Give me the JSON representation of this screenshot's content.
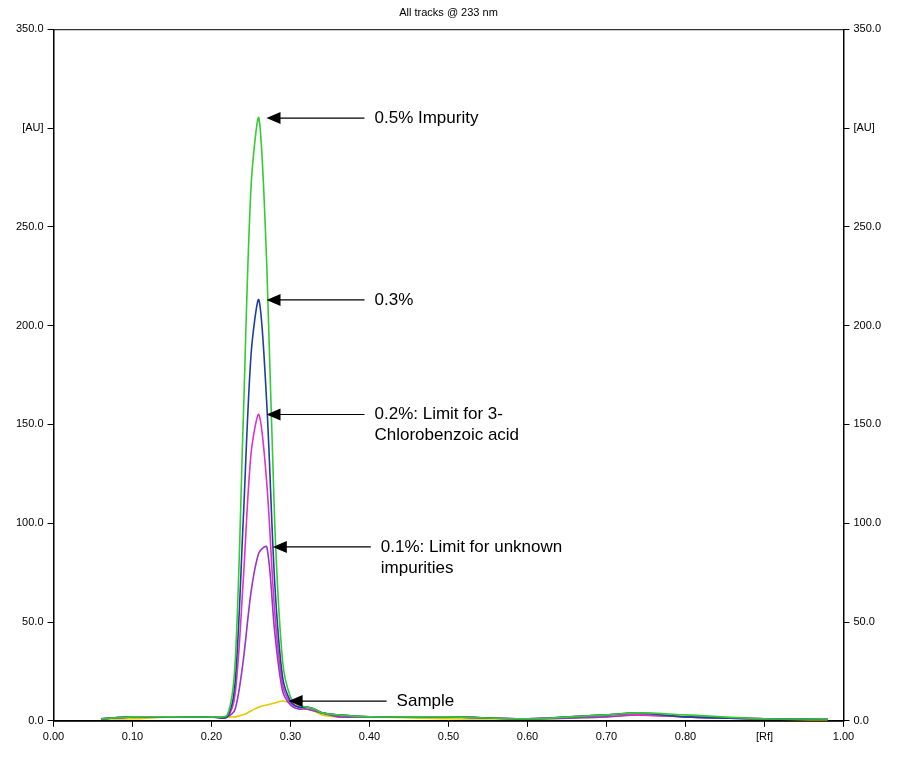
{
  "chart_data": {
    "type": "line",
    "title": "All tracks @ 233 nm",
    "x": [
      0.06,
      0.1,
      0.15,
      0.2,
      0.22,
      0.23,
      0.24,
      0.25,
      0.26,
      0.27,
      0.28,
      0.29,
      0.3,
      0.31,
      0.32,
      0.33,
      0.34,
      0.36,
      0.4,
      0.5,
      0.6,
      0.7,
      0.74,
      0.8,
      0.9,
      0.98
    ],
    "series": [
      {
        "color": "#33cc33",
        "values": [
          1,
          2,
          2,
          2,
          3,
          30,
          150,
          270,
          305,
          230,
          100,
          30,
          12,
          8,
          7,
          6,
          4,
          3,
          2,
          2,
          1,
          3,
          4,
          3,
          1,
          1
        ]
      },
      {
        "color": "#1f3f9f",
        "values": [
          1,
          2,
          2,
          2,
          2,
          20,
          100,
          185,
          213,
          160,
          70,
          22,
          10,
          7,
          7,
          6,
          4,
          3,
          2,
          2,
          1,
          3,
          4,
          2,
          1,
          1
        ]
      },
      {
        "color": "#dd33cc",
        "values": [
          1,
          2,
          2,
          2,
          2,
          14,
          70,
          135,
          155,
          120,
          55,
          18,
          9,
          7,
          7,
          6,
          4,
          3,
          2,
          2,
          1,
          3,
          3,
          2,
          1,
          1
        ]
      },
      {
        "color": "#9933cc",
        "values": [
          1,
          2,
          2,
          2,
          2,
          6,
          30,
          65,
          85,
          88,
          45,
          15,
          8,
          6,
          6,
          5,
          4,
          2,
          2,
          2,
          1,
          2,
          3,
          2,
          1,
          1
        ]
      },
      {
        "color": "#e6c800",
        "values": [
          1,
          1,
          2,
          2,
          2,
          2,
          3,
          5,
          7,
          8,
          9,
          10,
          9,
          7,
          6,
          5,
          3,
          2,
          2,
          1,
          1,
          2,
          3,
          2,
          1,
          0
        ]
      }
    ],
    "annotations": [
      {
        "text": "0.5% Impurity",
        "x": 0.262,
        "y": 305
      },
      {
        "text": "0.3%",
        "x": 0.262,
        "y": 213
      },
      {
        "text": "0.2%: Limit for 3-Chlorobenzoic acid",
        "x": 0.262,
        "y": 155
      },
      {
        "text": "0.1%: Limit for unknown impurities",
        "x": 0.27,
        "y": 88
      },
      {
        "text": "Sample",
        "x": 0.29,
        "y": 10
      }
    ],
    "xlim": [
      0,
      1
    ],
    "xticks": [
      {
        "value": 0,
        "label": "0.00"
      },
      {
        "value": 0.1,
        "label": "0.10"
      },
      {
        "value": 0.2,
        "label": "0.20"
      },
      {
        "value": 0.3,
        "label": "0.30"
      },
      {
        "value": 0.4,
        "label": "0.40"
      },
      {
        "value": 0.5,
        "label": "0.50"
      },
      {
        "value": 0.6,
        "label": "0.60"
      },
      {
        "value": 0.7,
        "label": "0.70"
      },
      {
        "value": 0.8,
        "label": "0.80"
      },
      {
        "value": 0.9,
        "label": "[Rf]"
      },
      {
        "value": 1,
        "label": "1.00"
      }
    ],
    "ylim": [
      0,
      350
    ],
    "yticks": [
      {
        "value": 0,
        "label": "0.0"
      },
      {
        "value": 50,
        "label": "50.0"
      },
      {
        "value": 100,
        "label": "100.0"
      },
      {
        "value": 150,
        "label": "150.0"
      },
      {
        "value": 200,
        "label": "200.0"
      },
      {
        "value": 250,
        "label": "250.0"
      },
      {
        "value": 300,
        "label": "[AU]"
      },
      {
        "value": 350,
        "label": "350.0"
      }
    ],
    "y2lim": [
      0,
      350
    ],
    "y2ticks": [
      {
        "value": 0,
        "label": "0.0"
      },
      {
        "value": 50,
        "label": "50.0"
      },
      {
        "value": 100,
        "label": "100.0"
      },
      {
        "value": 150,
        "label": "150.0"
      },
      {
        "value": 200,
        "label": "200.0"
      },
      {
        "value": 250,
        "label": "250.0"
      },
      {
        "value": 300,
        "label": "[AU]"
      },
      {
        "value": 350,
        "label": "350.0"
      }
    ],
    "grid": false
  }
}
